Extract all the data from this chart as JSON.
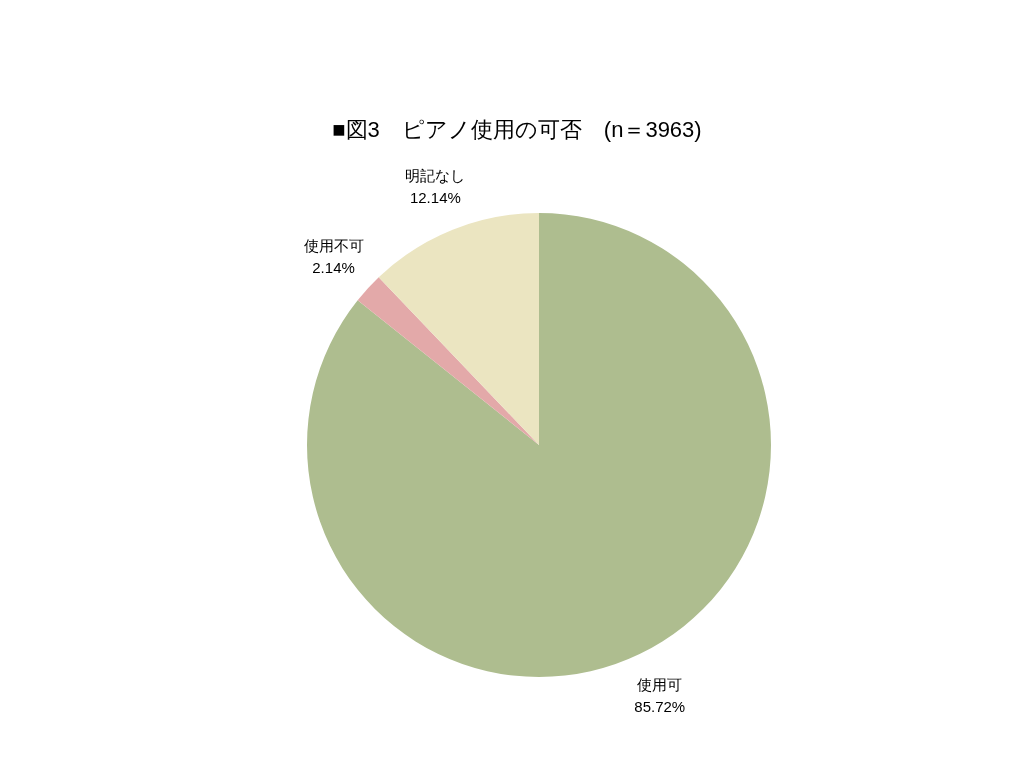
{
  "chart_data": {
    "type": "pie",
    "title": "■図3　ピアノ使用の可否　(n＝3963)",
    "categories": [
      "使用可",
      "使用不可",
      "明記なし"
    ],
    "values": [
      85.72,
      2.14,
      12.14
    ],
    "value_labels": [
      "85.72%",
      "2.14%",
      "12.14%"
    ],
    "colors": [
      "#aebd8f",
      "#e3a9a9",
      "#ebe5c1"
    ]
  }
}
